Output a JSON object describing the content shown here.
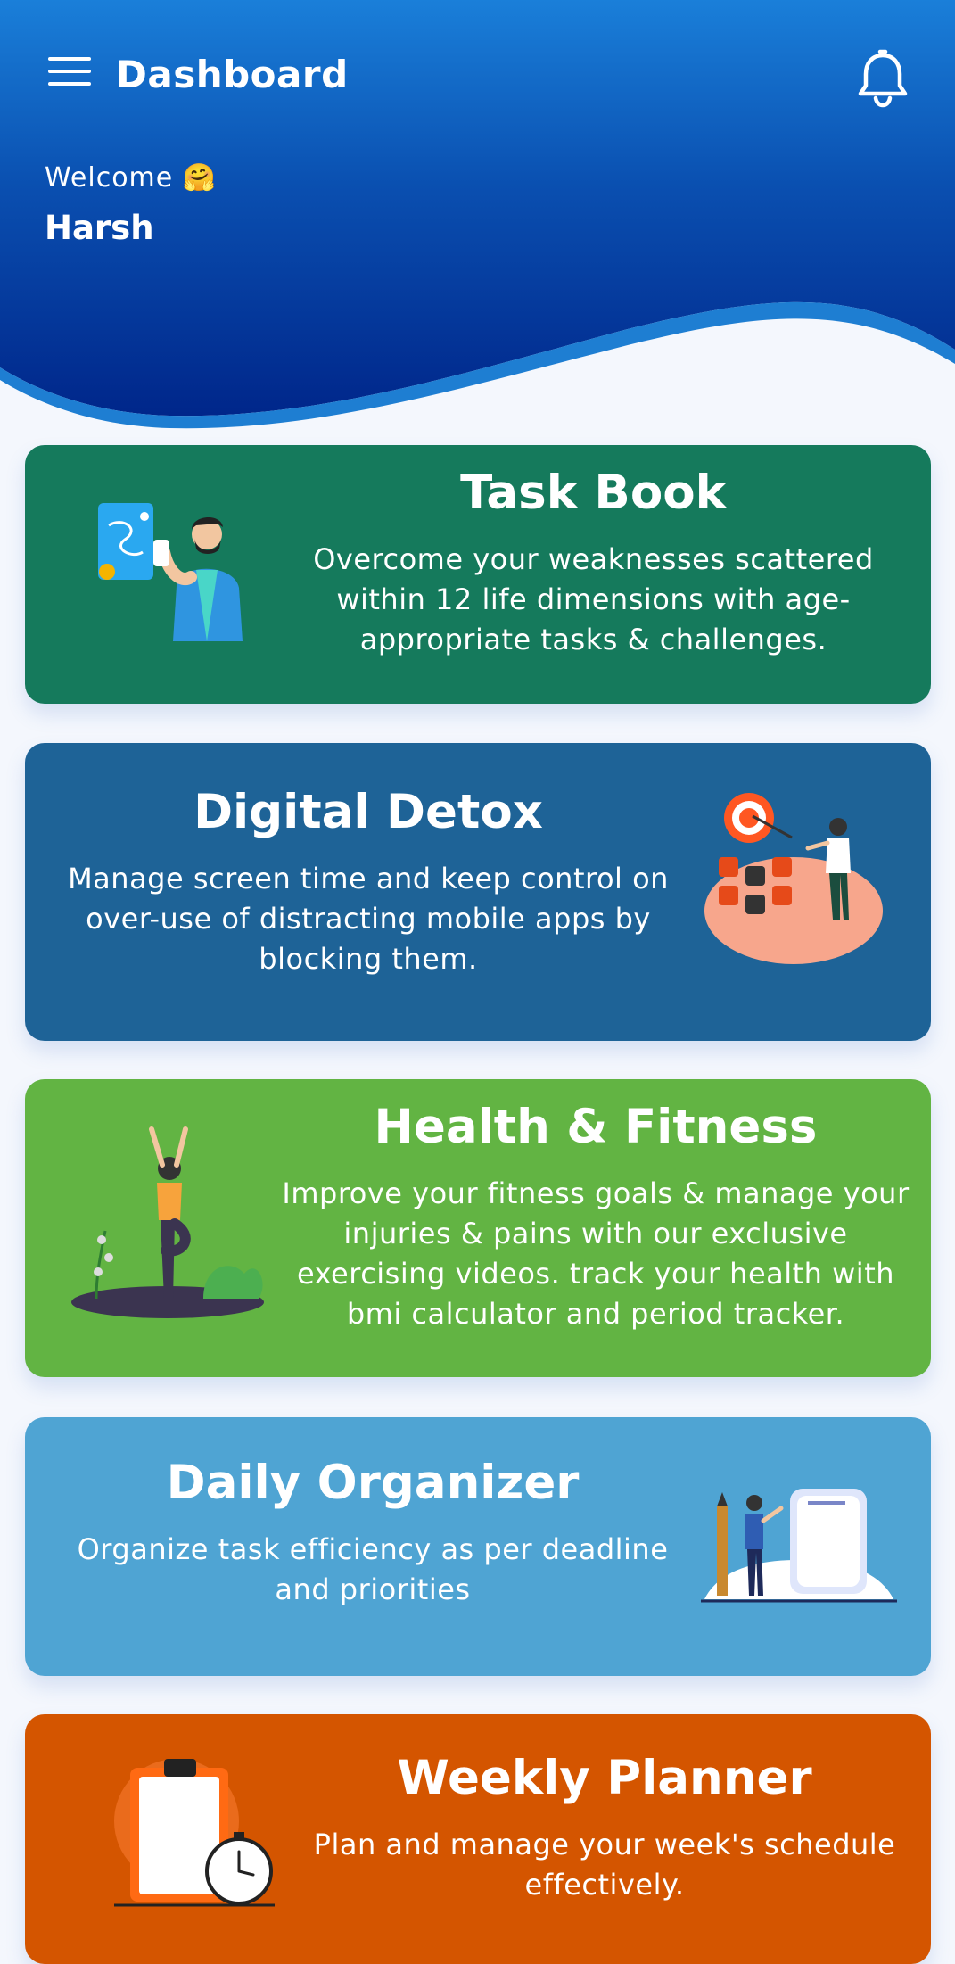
{
  "header": {
    "title": "Dashboard",
    "welcome_label": "Welcome 🤗",
    "user_name": "Harsh",
    "menu_icon": "hamburger-menu-icon",
    "notification_icon": "bell-icon",
    "gradient_top": "#1a7fd9",
    "gradient_bottom": "#00268a"
  },
  "cards": [
    {
      "title": "Task Book",
      "description": "Overcome your weaknesses scattered within 12 life dimensions with age-appropriate tasks & challenges.",
      "color": "#157a5c",
      "illustration": "man-with-phone-map-illustration"
    },
    {
      "title": "Digital Detox",
      "description": "Manage screen time and keep control on over-use of distracting mobile apps by blocking them.",
      "color": "#1e6397",
      "illustration": "target-social-apps-illustration"
    },
    {
      "title": "Health & Fitness",
      "description": "Improve your fitness goals & manage your injuries & pains with our exclusive exercising videos. track your health with bmi calculator and period tracker.",
      "color": "#62b443",
      "illustration": "yoga-woman-illustration"
    },
    {
      "title": "Daily Organizer",
      "description": "Organize task efficiency as per deadline and priorities",
      "color": "#4fa4d3",
      "illustration": "man-with-clipboard-pencil-illustration"
    },
    {
      "title": "Weekly Planner",
      "description": "Plan and manage your week's schedule effectively.",
      "color": "#d45500",
      "illustration": "clipboard-stopwatch-illustration"
    }
  ]
}
